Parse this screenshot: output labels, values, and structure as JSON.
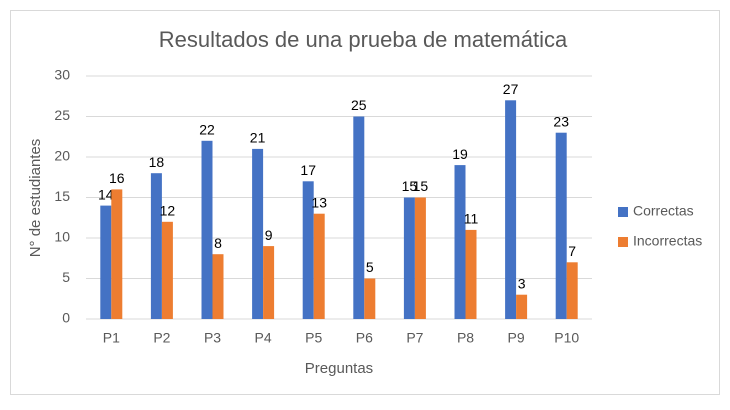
{
  "chart_data": {
    "type": "bar",
    "title": "Resultados de una prueba de matemática",
    "x_label": "Preguntas",
    "y_label": "N° de estudiantes",
    "categories": [
      "P1",
      "P2",
      "P3",
      "P4",
      "P5",
      "P6",
      "P7",
      "P8",
      "P9",
      "P10"
    ],
    "series": [
      {
        "name": "Correctas",
        "color": "#4472c4",
        "values": [
          14,
          18,
          22,
          21,
          17,
          25,
          15,
          19,
          27,
          23
        ]
      },
      {
        "name": "Incorrectas",
        "color": "#ed7d31",
        "values": [
          16,
          12,
          8,
          9,
          13,
          5,
          15,
          11,
          3,
          7
        ]
      }
    ],
    "ylim": [
      0,
      30
    ],
    "yticks": [
      0,
      5,
      10,
      15,
      20,
      25,
      30
    ],
    "grid": true,
    "legend": "right"
  }
}
